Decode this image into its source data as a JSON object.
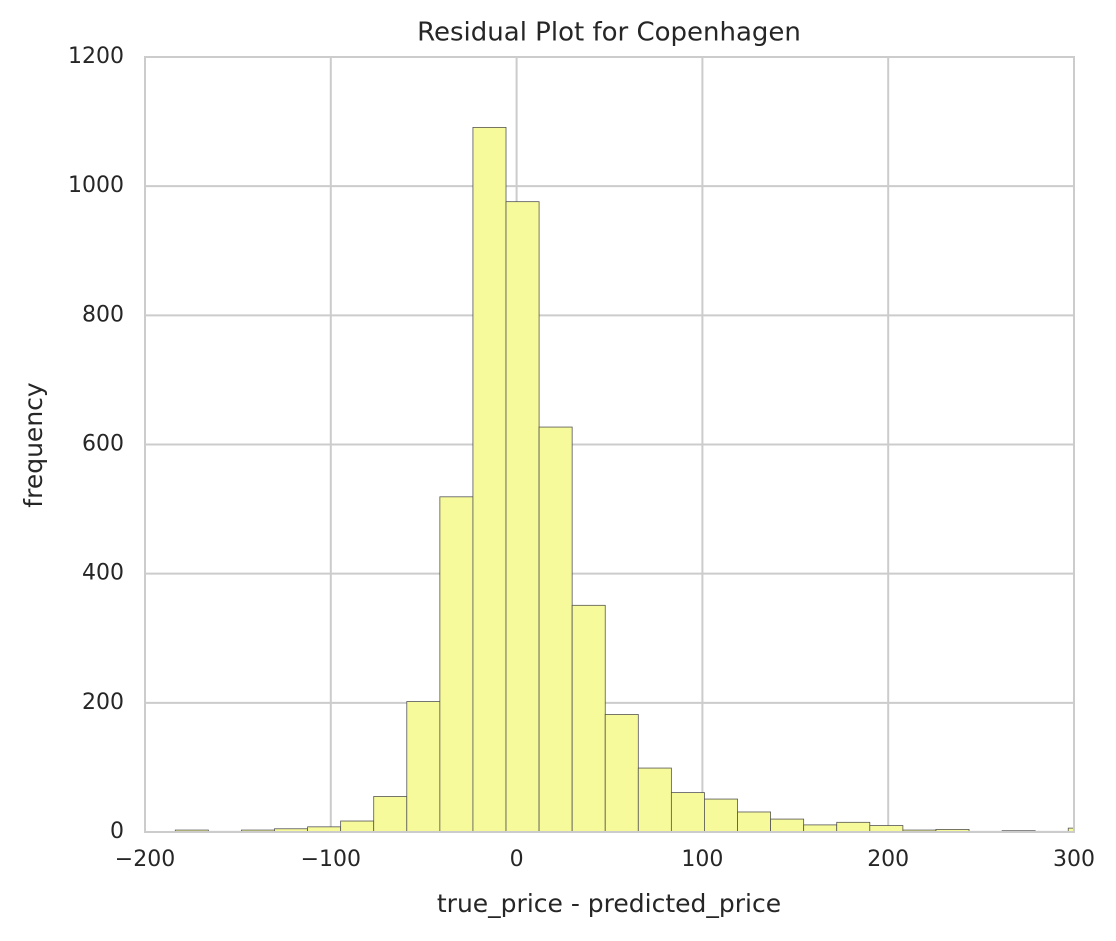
{
  "chart_data": {
    "type": "histogram",
    "title": "Residual Plot for Copenhagen",
    "xlabel": "true_price - predicted_price",
    "ylabel": "frequency",
    "bins": [
      -183.7,
      -165.9,
      -148.1,
      -130.3,
      -112.5,
      -94.7,
      -76.9,
      -59.1,
      -41.3,
      -23.5,
      -5.7,
      12.1,
      29.9,
      47.7,
      65.5,
      83.3,
      101.1,
      118.9,
      136.7,
      154.5,
      172.3,
      190.1,
      207.9,
      225.7,
      243.5,
      261.3,
      279.1,
      296.9,
      314.7
    ],
    "values": [
      3,
      1,
      3,
      5,
      8,
      17,
      55,
      202,
      519,
      1091,
      976,
      627,
      351,
      182,
      99,
      61,
      51,
      31,
      20,
      11,
      15,
      10,
      3,
      4,
      1,
      2,
      1,
      6
    ],
    "color": "#f7fa9a",
    "edgecolor": "#555555",
    "xlim": [
      -200,
      300
    ],
    "xticks": [
      {
        "value": -200,
        "label": "−200"
      },
      {
        "value": -100,
        "label": "−100"
      },
      0,
      100,
      200,
      300
    ],
    "ylim": [
      0,
      1200
    ],
    "yticks": [
      0,
      200,
      400,
      600,
      800,
      1000,
      1200
    ],
    "grid": true
  }
}
